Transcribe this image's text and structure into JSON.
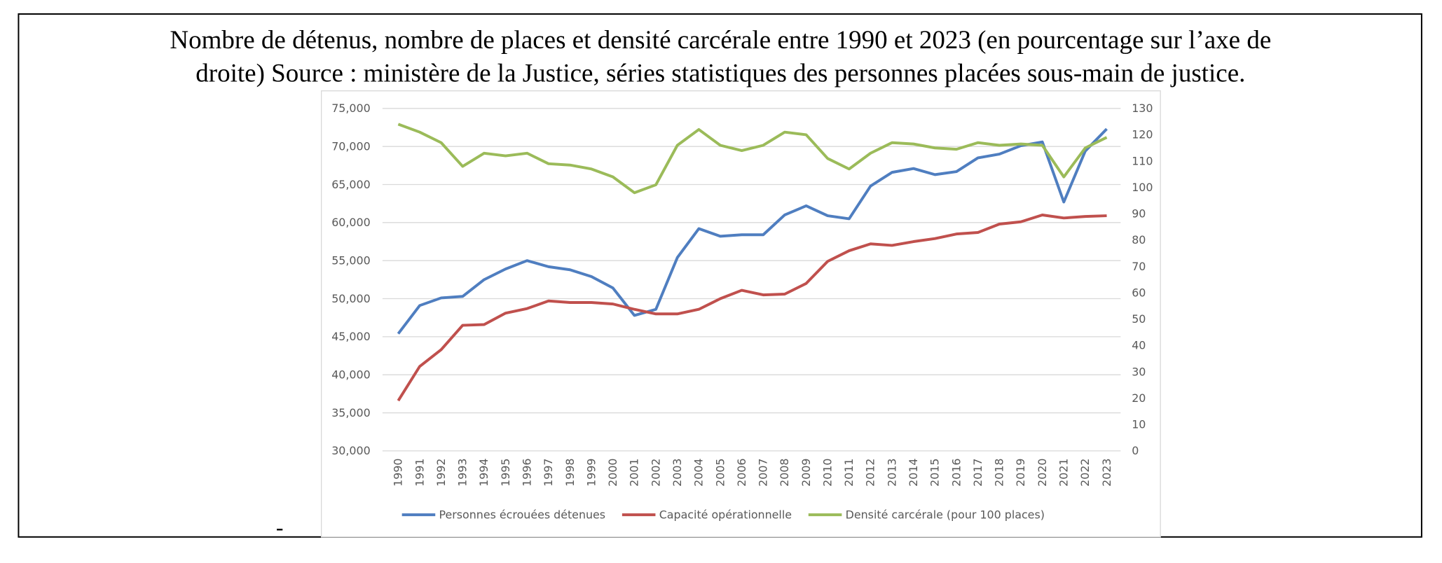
{
  "chart_data": {
    "type": "line",
    "title": [
      "Nombre de détenus, nombre de places et densité carcérale entre 1990 et 2023 (en pourcentage sur l’axe de",
      "droite) Source : ministère de la Justice, séries statistiques des personnes placées sous-main de justice."
    ],
    "note": "-",
    "categories": [
      "1990",
      "1991",
      "1992",
      "1993",
      "1994",
      "1995",
      "1996",
      "1997",
      "1998",
      "1999",
      "2000",
      "2001",
      "2002",
      "2003",
      "2004",
      "2005",
      "2006",
      "2007",
      "2008",
      "2009",
      "2010",
      "2011",
      "2012",
      "2013",
      "2014",
      "2015",
      "2016",
      "2017",
      "2018",
      "2019",
      "2020",
      "2021",
      "2022",
      "2023"
    ],
    "series": [
      {
        "name": "Personnes écrouées détenues",
        "color": "#4f7ec0",
        "values": [
          45400,
          49100,
          50100,
          50300,
          52500,
          53900,
          55000,
          54200,
          53800,
          52900,
          51400,
          47800,
          48600,
          55400,
          59200,
          58200,
          58400,
          58400,
          61000,
          62200,
          60900,
          60500,
          64800,
          66600,
          67100,
          66300,
          66700,
          68500,
          69000,
          70100,
          70600,
          62700,
          69400,
          72300
        ]
      },
      {
        "name": "Capacité opérationnelle",
        "color": "#c0504d",
        "values": [
          36600,
          41100,
          43300,
          46500,
          46600,
          48100,
          48700,
          49700,
          49500,
          49500,
          49300,
          48600,
          48000,
          48000,
          48600,
          50000,
          51100,
          50500,
          50600,
          52000,
          54900,
          56300,
          57200,
          57000,
          57500,
          57900,
          58500,
          58700,
          59800,
          60100,
          61000,
          60600,
          60800,
          60900
        ]
      },
      {
        "name": "Densité carcérale (pour 100 places)",
        "color": "#9bbb59",
        "axis": "y2",
        "values": [
          124,
          121,
          117,
          108,
          113,
          112,
          113,
          109,
          108.5,
          107,
          104,
          98,
          101,
          116,
          122,
          116,
          114,
          116,
          121,
          120,
          111,
          107,
          113,
          117,
          116.5,
          115,
          114.5,
          117,
          116,
          116.5,
          116,
          104,
          115,
          119
        ]
      }
    ],
    "ylim": [
      30000,
      75000
    ],
    "yticks": [
      {
        "value": 30000,
        "label": "30,000"
      },
      {
        "value": 35000,
        "label": "35,000"
      },
      {
        "value": 40000,
        "label": "40,000"
      },
      {
        "value": 45000,
        "label": "45,000"
      },
      {
        "value": 50000,
        "label": "50,000"
      },
      {
        "value": 55000,
        "label": "55,000"
      },
      {
        "value": 60000,
        "label": "60,000"
      },
      {
        "value": 65000,
        "label": "65,000"
      },
      {
        "value": 70000,
        "label": "70,000"
      },
      {
        "value": 75000,
        "label": "75,000"
      }
    ],
    "y2lim": [
      0,
      130
    ],
    "y2ticks": [
      0,
      10,
      20,
      30,
      40,
      50,
      60,
      70,
      80,
      90,
      100,
      110,
      120,
      130
    ],
    "grid": true,
    "legend": "bottom"
  }
}
